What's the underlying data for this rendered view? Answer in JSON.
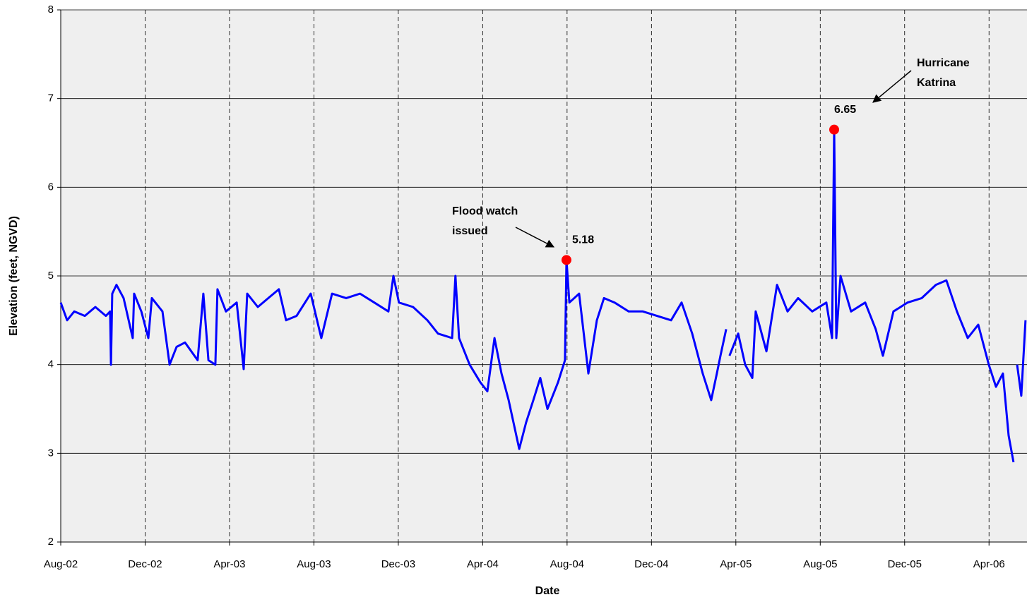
{
  "chart_data": {
    "type": "line",
    "x_label": "Date",
    "y_label": "Elevation (feet, NGVD)",
    "xlim": [
      0,
      45.8
    ],
    "ylim": [
      2,
      8
    ],
    "xticks": [
      {
        "value": 0,
        "label": "Aug-02"
      },
      {
        "value": 4,
        "label": "Dec-02"
      },
      {
        "value": 8,
        "label": "Apr-03"
      },
      {
        "value": 12,
        "label": "Aug-03"
      },
      {
        "value": 16,
        "label": "Dec-03"
      },
      {
        "value": 20,
        "label": "Apr-04"
      },
      {
        "value": 24,
        "label": "Aug-04"
      },
      {
        "value": 28,
        "label": "Dec-04"
      },
      {
        "value": 32,
        "label": "Apr-05"
      },
      {
        "value": 36,
        "label": "Aug-05"
      },
      {
        "value": 40,
        "label": "Dec-05"
      },
      {
        "value": 44,
        "label": "Apr-06"
      }
    ],
    "yticks": [
      2,
      3,
      4,
      5,
      6,
      7,
      8
    ],
    "grid": true,
    "series": [
      {
        "color": "#0000ff",
        "x": [
          0,
          0.3,
          0.64,
          1.14,
          1.64,
          2.14,
          2.34,
          2.38,
          2.44,
          2.64,
          2.98,
          3.41,
          3.48,
          3.82,
          4.15,
          4.32,
          4.82,
          5.16,
          5.49,
          5.89,
          6.49,
          6.76,
          7.0,
          7.33,
          7.43,
          7.83,
          8.34,
          8.67,
          8.84,
          9.34,
          9.84,
          10.34,
          10.68,
          11.18,
          11.85,
          12.35,
          12.86,
          13.53,
          14.19,
          14.86,
          15.53,
          15.77,
          16.03,
          16.7,
          17.38,
          17.88,
          18.55,
          18.71,
          18.88,
          19.38,
          19.89,
          20.22,
          20.56,
          20.89,
          21.23,
          21.73,
          22.06,
          22.4,
          22.73,
          23.07,
          23.57,
          23.9,
          23.97,
          24.11,
          24.57,
          25.01,
          25.41,
          25.75,
          26.25,
          26.92,
          27.59,
          28.26,
          28.93,
          29.43,
          29.93,
          30.43,
          30.83,
          31.1,
          31.27,
          31.54,
          31.62,
          31.7,
          32.11,
          32.44,
          32.78,
          32.94,
          33.45,
          33.95,
          34.45,
          34.95,
          35.62,
          36.29,
          36.56,
          36.66,
          36.76,
          36.96,
          37.46,
          38.13,
          38.63,
          38.97,
          39.47,
          40.14,
          40.81,
          41.48,
          41.98,
          42.48,
          42.99,
          43.49,
          43.99,
          44.33,
          44.66,
          44.93,
          45.16,
          45.25,
          45.33,
          45.53,
          45.73
        ],
        "values": [
          4.7,
          4.5,
          4.6,
          4.55,
          4.65,
          4.55,
          4.6,
          4.0,
          4.8,
          4.9,
          4.75,
          4.3,
          4.8,
          4.6,
          4.3,
          4.75,
          4.6,
          4.0,
          4.2,
          4.25,
          4.05,
          4.8,
          4.05,
          4.0,
          4.85,
          4.6,
          4.7,
          3.95,
          4.8,
          4.65,
          4.75,
          4.85,
          4.5,
          4.55,
          4.8,
          4.3,
          4.8,
          4.75,
          4.8,
          4.7,
          4.6,
          5.0,
          4.7,
          4.65,
          4.5,
          4.35,
          4.3,
          5.0,
          4.3,
          4.0,
          3.8,
          3.7,
          4.3,
          3.9,
          3.6,
          3.05,
          3.35,
          3.6,
          3.85,
          3.5,
          3.8,
          4.05,
          5.18,
          4.7,
          4.8,
          3.9,
          4.5,
          4.75,
          4.7,
          4.6,
          4.6,
          4.55,
          4.5,
          4.7,
          4.35,
          3.9,
          3.6,
          3.9,
          4.1,
          4.4,
          null,
          4.1,
          4.35,
          4.0,
          3.85,
          4.6,
          4.15,
          4.9,
          4.6,
          4.75,
          4.6,
          4.7,
          4.3,
          6.65,
          4.3,
          5.0,
          4.6,
          4.7,
          4.4,
          4.1,
          4.6,
          4.7,
          4.75,
          4.9,
          4.95,
          4.6,
          4.3,
          4.45,
          4.0,
          3.75,
          3.9,
          3.2,
          2.9,
          null,
          4.0,
          3.65,
          4.5
        ]
      }
    ],
    "markers": {
      "color": "#ff0000",
      "x": [
        23.97,
        36.66
      ],
      "values": [
        5.18,
        6.65
      ]
    },
    "annotations": [
      {
        "lines": [
          "Flood watch",
          "issued"
        ]
      },
      {
        "lines": [
          "Hurricane",
          "Katrina"
        ]
      }
    ]
  }
}
